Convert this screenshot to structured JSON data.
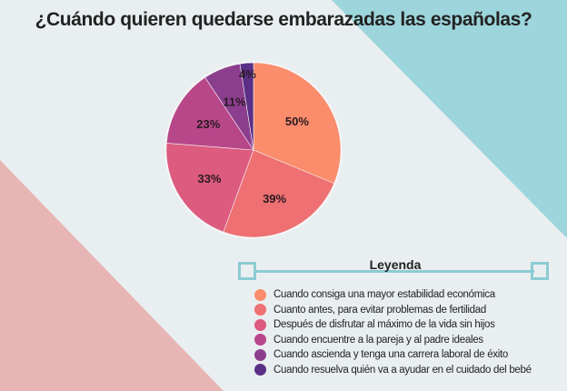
{
  "title": "¿Cuándo quieren quedarse embarazadas las españolas?",
  "chart_data": {
    "type": "pie",
    "legend_title": "Leyenda",
    "legend_placement": "bottom-right",
    "slices": [
      {
        "label": "Cuando consiga una mayor estabilidad económica",
        "value": 50,
        "display": "50%",
        "color": "#fb8c6c"
      },
      {
        "label": "Cuanto antes, para evitar problemas de fertilidad",
        "value": 39,
        "display": "39%",
        "color": "#ee7072"
      },
      {
        "label": "Después de disfrutar al máximo de la vida sin hijos",
        "value": 33,
        "display": "33%",
        "color": "#dc5b7f"
      },
      {
        "label": "Cuando encuentre a la pareja y al padre ideales",
        "value": 23,
        "display": "23%",
        "color": "#b8478a"
      },
      {
        "label": "Cuando ascienda y tenga una carrera laboral de éxito",
        "value": 11,
        "display": "11%",
        "color": "#8c3e8e"
      },
      {
        "label": "Cuando resuelva quién va a ayudar en el cuidado del bebé",
        "value": 4,
        "display": "4%",
        "color": "#5b2f86"
      }
    ]
  },
  "colors": {
    "background": "#e9eef0",
    "teal": "#9dd5dc",
    "pink": "#e8b5b5"
  }
}
